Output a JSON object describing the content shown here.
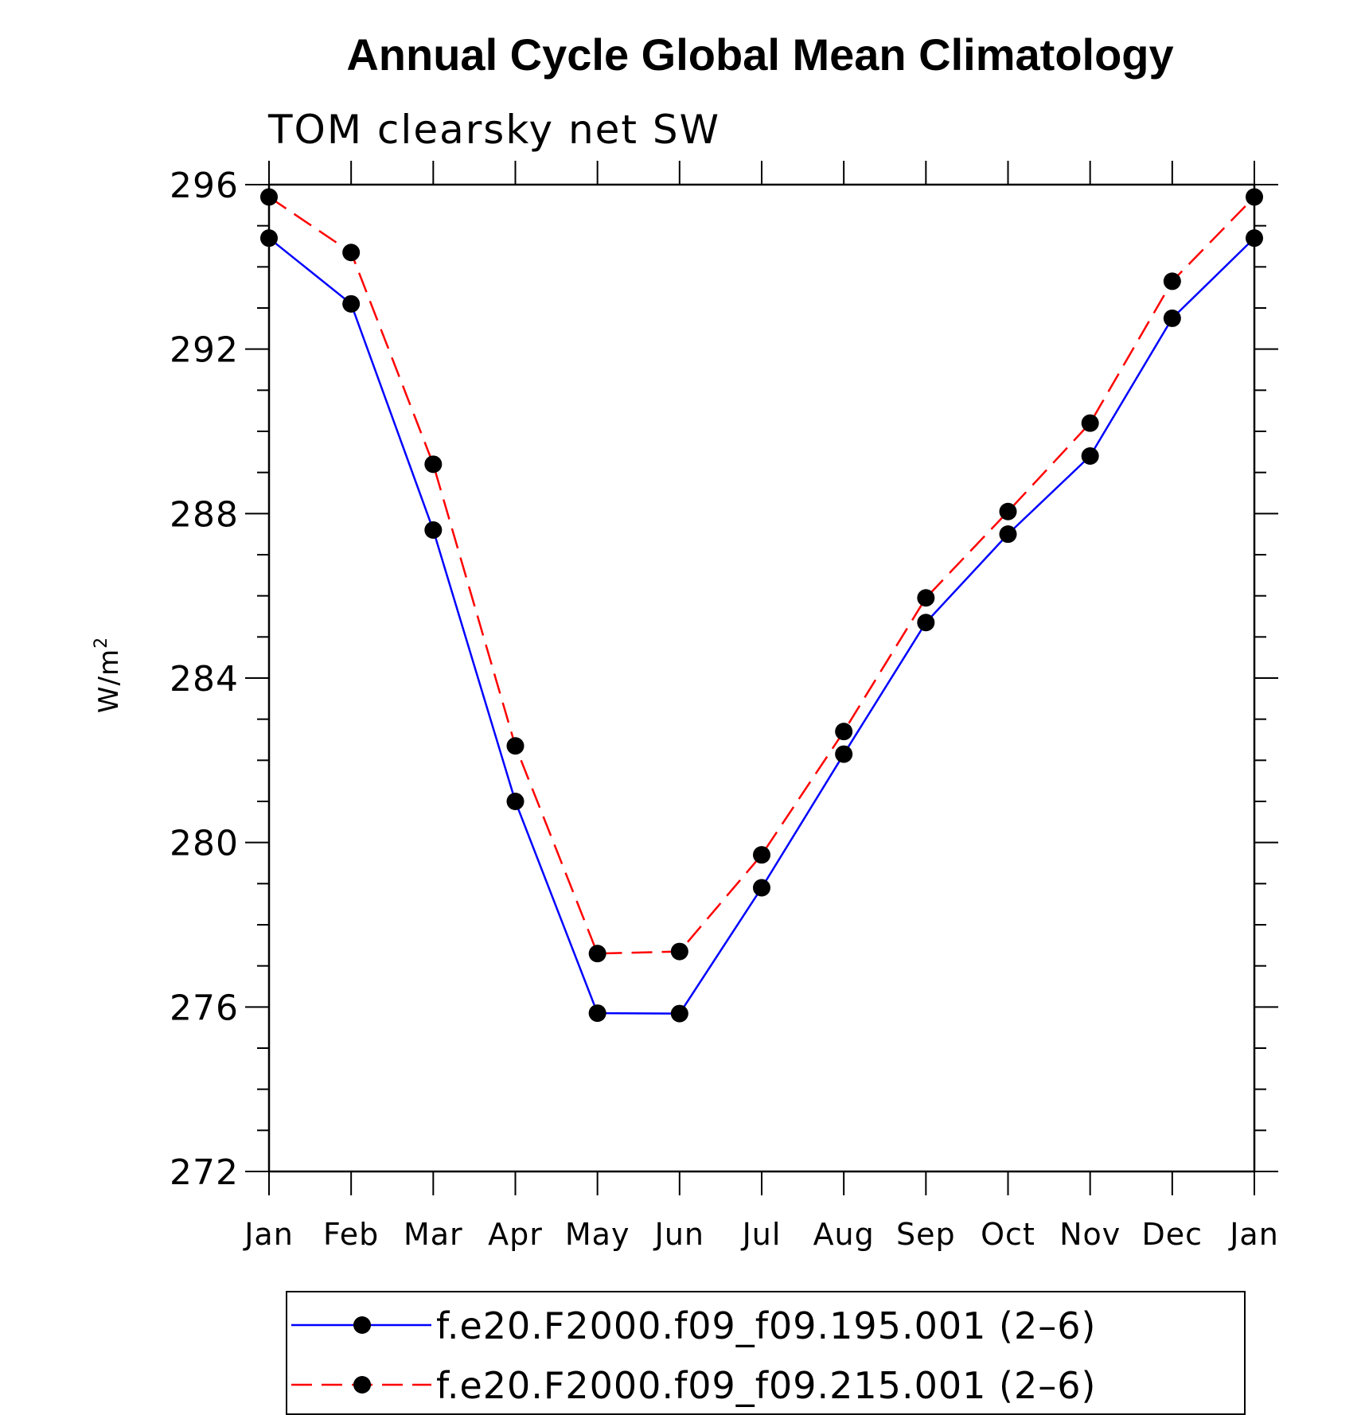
{
  "chart_data": {
    "type": "line",
    "title": "Annual Cycle Global Mean Climatology",
    "subtitle": "TOM clearsky net SW",
    "ylabel": "W/m",
    "ylabel_sup": "2",
    "xlabel": "",
    "categories": [
      "Jan",
      "Feb",
      "Mar",
      "Apr",
      "May",
      "Jun",
      "Jul",
      "Aug",
      "Sep",
      "Oct",
      "Nov",
      "Dec",
      "Jan"
    ],
    "ylim": [
      272,
      296
    ],
    "yticks": [
      "296",
      "292",
      "288",
      "284",
      "280",
      "276",
      "272"
    ],
    "grid": false,
    "legend_position": "bottom",
    "series": [
      {
        "name": "f.e20.F2000.f09_f09.195.001 (2–6)",
        "color": "#0000ff",
        "dash": "solid",
        "marker": "filled-circle",
        "values": [
          294.7,
          293.1,
          287.6,
          281.0,
          275.85,
          275.84,
          278.9,
          282.15,
          285.35,
          287.5,
          289.4,
          292.75,
          294.7
        ]
      },
      {
        "name": "f.e20.F2000.f09_f09.215.001 (2–6)",
        "color": "#ff0000",
        "dash": "dashed",
        "marker": "filled-circle",
        "values": [
          295.7,
          294.35,
          289.2,
          282.35,
          277.3,
          277.35,
          279.7,
          282.7,
          285.95,
          288.05,
          290.2,
          293.65,
          295.7
        ]
      }
    ]
  }
}
